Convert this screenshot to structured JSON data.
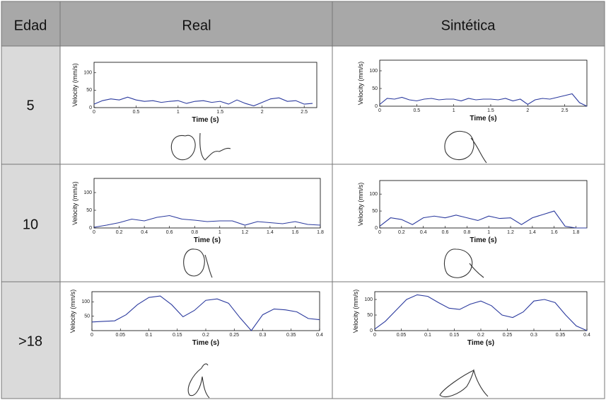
{
  "table": {
    "header": {
      "age": "Edad",
      "real": "Real",
      "synthetic": "Sintética"
    },
    "rows": [
      {
        "age": "5",
        "real": {
          "type": "line",
          "x_label": "Time (s)",
          "y_label": "Velocity (mm/s)",
          "color": "#2b3a9e",
          "xlim": [
            0,
            2.65
          ],
          "xticks": [
            0,
            0.5,
            1,
            1.5,
            2,
            2.5
          ],
          "ylim": [
            0,
            130
          ],
          "yticks": [
            0,
            50,
            100
          ],
          "x": [
            0,
            0.1,
            0.2,
            0.3,
            0.4,
            0.5,
            0.6,
            0.7,
            0.8,
            0.9,
            1,
            1.1,
            1.2,
            1.3,
            1.4,
            1.5,
            1.6,
            1.7,
            1.8,
            1.9,
            2,
            2.1,
            2.2,
            2.3,
            2.4,
            2.5,
            2.6
          ],
          "values": [
            10,
            20,
            25,
            22,
            30,
            22,
            18,
            20,
            15,
            18,
            20,
            12,
            18,
            20,
            15,
            18,
            10,
            22,
            12,
            5,
            15,
            25,
            28,
            18,
            20,
            10,
            12
          ]
        },
        "synthetic": {
          "type": "line",
          "x_label": "Time (s)",
          "y_label": "Velocity (mm/s)",
          "color": "#2b3a9e",
          "xlim": [
            0,
            2.8
          ],
          "xticks": [
            0,
            0.5,
            1,
            1.5,
            2,
            2.5
          ],
          "ylim": [
            0,
            130
          ],
          "yticks": [
            0,
            50,
            100
          ],
          "x": [
            0,
            0.1,
            0.2,
            0.3,
            0.4,
            0.5,
            0.6,
            0.7,
            0.8,
            0.9,
            1,
            1.1,
            1.2,
            1.3,
            1.4,
            1.5,
            1.6,
            1.7,
            1.8,
            1.9,
            2,
            2.1,
            2.2,
            2.3,
            2.4,
            2.5,
            2.6,
            2.7,
            2.8
          ],
          "values": [
            5,
            22,
            20,
            25,
            18,
            15,
            20,
            22,
            18,
            20,
            20,
            15,
            22,
            18,
            20,
            20,
            18,
            22,
            15,
            20,
            5,
            18,
            22,
            20,
            25,
            30,
            35,
            10,
            0
          ]
        }
      },
      {
        "age": "10",
        "real": {
          "type": "line",
          "x_label": "Time (s)",
          "y_label": "Velocity (mm/s)",
          "color": "#2b3a9e",
          "xlim": [
            0,
            1.8
          ],
          "xticks": [
            0,
            0.2,
            0.4,
            0.6,
            0.8,
            1,
            1.2,
            1.4,
            1.6,
            1.8
          ],
          "ylim": [
            0,
            140
          ],
          "yticks": [
            0,
            50,
            100
          ],
          "x": [
            0,
            0.1,
            0.2,
            0.3,
            0.4,
            0.5,
            0.6,
            0.7,
            0.8,
            0.9,
            1,
            1.1,
            1.2,
            1.3,
            1.4,
            1.5,
            1.6,
            1.7,
            1.8
          ],
          "values": [
            2,
            8,
            15,
            25,
            20,
            30,
            35,
            25,
            22,
            18,
            20,
            20,
            8,
            18,
            15,
            12,
            18,
            10,
            8
          ]
        },
        "synthetic": {
          "type": "line",
          "x_label": "Time (s)",
          "y_label": "Velocity (mm/s)",
          "color": "#2b3a9e",
          "xlim": [
            0,
            1.9
          ],
          "xticks": [
            0,
            0.2,
            0.4,
            0.6,
            0.8,
            1,
            1.2,
            1.4,
            1.6,
            1.8
          ],
          "ylim": [
            0,
            140
          ],
          "yticks": [
            0,
            50,
            100
          ],
          "x": [
            0,
            0.1,
            0.2,
            0.3,
            0.4,
            0.5,
            0.6,
            0.7,
            0.8,
            0.9,
            1,
            1.1,
            1.2,
            1.3,
            1.4,
            1.5,
            1.6,
            1.7,
            1.8,
            1.9
          ],
          "values": [
            5,
            30,
            25,
            10,
            30,
            35,
            30,
            38,
            30,
            22,
            35,
            28,
            30,
            10,
            30,
            40,
            50,
            5,
            0,
            0
          ]
        }
      },
      {
        "age": ">18",
        "real": {
          "type": "line",
          "x_label": "Time (s)",
          "y_label": "Velocity (mm/s)",
          "color": "#2b3a9e",
          "xlim": [
            0,
            0.4
          ],
          "xticks": [
            0,
            0.05,
            0.1,
            0.15,
            0.2,
            0.25,
            0.3,
            0.35,
            0.4
          ],
          "ylim": [
            0,
            135
          ],
          "yticks": [
            50,
            100
          ],
          "x": [
            0,
            0.02,
            0.04,
            0.06,
            0.08,
            0.1,
            0.12,
            0.14,
            0.16,
            0.18,
            0.2,
            0.22,
            0.24,
            0.26,
            0.28,
            0.3,
            0.32,
            0.34,
            0.36,
            0.38,
            0.4
          ],
          "values": [
            30,
            32,
            34,
            55,
            90,
            115,
            120,
            90,
            48,
            70,
            105,
            110,
            95,
            45,
            0,
            55,
            75,
            72,
            65,
            42,
            38
          ]
        },
        "synthetic": {
          "type": "line",
          "x_label": "Time (s)",
          "y_label": "Velocity (mm/s)",
          "color": "#2b3a9e",
          "xlim": [
            0,
            0.4
          ],
          "xticks": [
            0,
            0.05,
            0.1,
            0.15,
            0.2,
            0.25,
            0.3,
            0.35,
            0.4
          ],
          "ylim": [
            0,
            125
          ],
          "yticks": [
            0,
            50,
            100
          ],
          "x": [
            0,
            0.02,
            0.04,
            0.06,
            0.08,
            0.1,
            0.12,
            0.14,
            0.16,
            0.18,
            0.2,
            0.22,
            0.24,
            0.26,
            0.28,
            0.3,
            0.32,
            0.34,
            0.36,
            0.38,
            0.4
          ],
          "values": [
            5,
            30,
            65,
            100,
            115,
            110,
            90,
            72,
            68,
            85,
            95,
            80,
            50,
            42,
            60,
            95,
            100,
            90,
            50,
            15,
            0
          ]
        }
      }
    ]
  }
}
